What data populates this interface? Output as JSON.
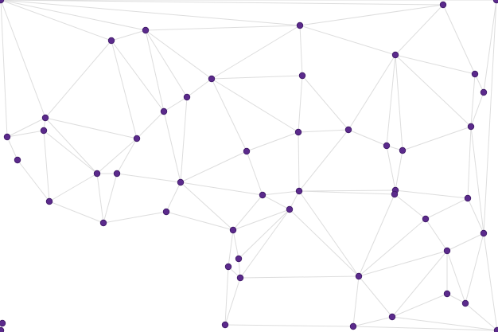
{
  "diagram": {
    "type": "network-graph",
    "node_color": "#5b2a8c",
    "node_stroke": "#3f1a66",
    "edge_color": "#dddddd",
    "background": "#ffffff",
    "node_count": 52,
    "edges": [
      [
        0,
        1
      ],
      [
        0,
        2
      ],
      [
        0,
        3
      ],
      [
        0,
        4
      ],
      [
        0,
        5
      ],
      [
        0,
        13
      ],
      [
        0,
        15
      ],
      [
        1,
        2
      ],
      [
        1,
        13
      ],
      [
        1,
        16
      ],
      [
        1,
        10
      ],
      [
        2,
        3
      ],
      [
        2,
        10
      ],
      [
        2,
        9
      ],
      [
        2,
        7
      ],
      [
        7,
        8
      ],
      [
        7,
        9
      ],
      [
        7,
        3
      ],
      [
        7,
        22
      ],
      [
        7,
        17
      ],
      [
        9,
        10
      ],
      [
        9,
        26
      ],
      [
        10,
        16
      ],
      [
        10,
        26
      ],
      [
        16,
        13
      ],
      [
        16,
        24
      ],
      [
        16,
        25
      ],
      [
        13,
        14
      ],
      [
        13,
        15
      ],
      [
        13,
        24
      ],
      [
        14,
        15
      ],
      [
        14,
        24
      ],
      [
        14,
        32
      ],
      [
        15,
        23
      ],
      [
        23,
        32
      ],
      [
        32,
        24
      ],
      [
        32,
        36
      ],
      [
        24,
        25
      ],
      [
        24,
        36
      ],
      [
        25,
        36
      ],
      [
        25,
        26
      ],
      [
        26,
        22
      ],
      [
        26,
        33
      ],
      [
        26,
        28
      ],
      [
        26,
        37
      ],
      [
        22,
        17
      ],
      [
        22,
        28
      ],
      [
        33,
        36
      ],
      [
        33,
        37
      ],
      [
        28,
        27
      ],
      [
        28,
        34
      ],
      [
        28,
        37
      ],
      [
        27,
        34
      ],
      [
        27,
        17
      ],
      [
        27,
        18
      ],
      [
        27,
        29
      ],
      [
        27,
        30
      ],
      [
        27,
        43
      ],
      [
        17,
        8
      ],
      [
        17,
        18
      ],
      [
        8,
        3
      ],
      [
        8,
        18
      ],
      [
        3,
        6
      ],
      [
        3,
        4
      ],
      [
        6,
        4
      ],
      [
        6,
        18
      ],
      [
        6,
        11
      ],
      [
        6,
        20
      ],
      [
        6,
        21
      ],
      [
        6,
        19
      ],
      [
        4,
        11
      ],
      [
        5,
        12
      ],
      [
        5,
        38
      ],
      [
        11,
        12
      ],
      [
        11,
        19
      ],
      [
        12,
        19
      ],
      [
        18,
        20
      ],
      [
        20,
        21
      ],
      [
        20,
        29
      ],
      [
        21,
        29
      ],
      [
        21,
        19
      ],
      [
        19,
        31
      ],
      [
        19,
        38
      ],
      [
        29,
        31
      ],
      [
        30,
        35
      ],
      [
        30,
        43
      ],
      [
        31,
        35
      ],
      [
        31,
        38
      ],
      [
        35,
        39
      ],
      [
        35,
        43
      ],
      [
        38,
        39
      ],
      [
        38,
        45
      ],
      [
        38,
        51
      ],
      [
        39,
        43
      ],
      [
        39,
        44
      ],
      [
        39,
        45
      ],
      [
        39,
        46
      ],
      [
        44,
        46
      ],
      [
        44,
        45
      ],
      [
        45,
        51
      ],
      [
        46,
        51
      ],
      [
        46,
        48
      ],
      [
        46,
        43
      ],
      [
        43,
        48
      ],
      [
        43,
        42
      ],
      [
        43,
        34
      ],
      [
        34,
        37
      ],
      [
        34,
        40
      ],
      [
        34,
        42
      ],
      [
        37,
        40
      ],
      [
        37,
        41
      ],
      [
        40,
        42
      ],
      [
        41,
        42
      ],
      [
        41,
        47
      ],
      [
        42,
        47
      ],
      [
        47,
        48
      ],
      [
        48,
        51
      ],
      [
        49,
        50
      ]
    ]
  }
}
